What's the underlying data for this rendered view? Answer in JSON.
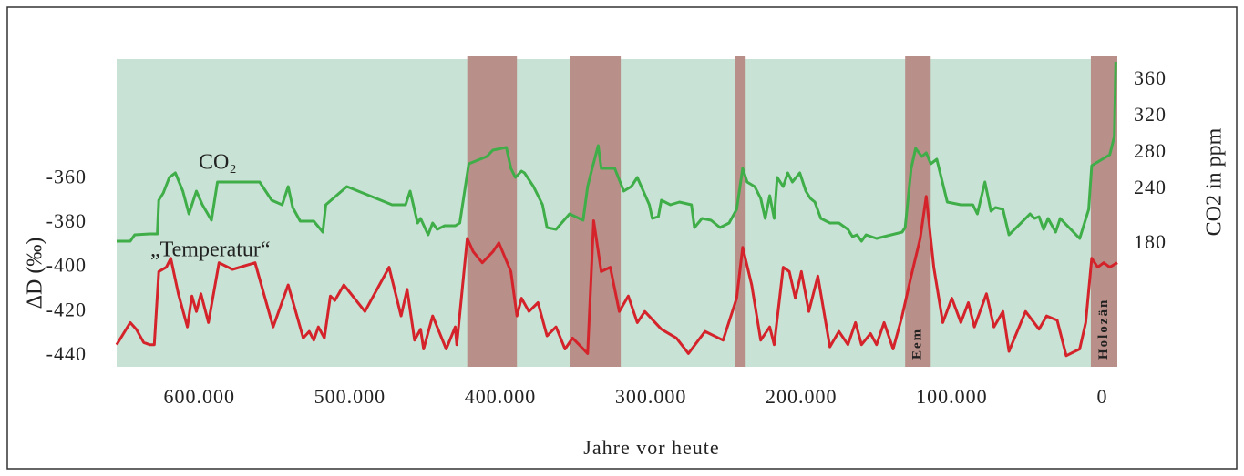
{
  "chart_data": {
    "type": "line",
    "xlabel": "Jahre vor heute",
    "ylabel": "ΔD (‰)",
    "y2label": "CO2 in ppm",
    "xlim": [
      655000,
      -10000
    ],
    "xticks": [
      {
        "value": 600000,
        "label": "600.000"
      },
      {
        "value": 500000,
        "label": "500.000"
      },
      {
        "value": 400000,
        "label": "400.000"
      },
      {
        "value": 300000,
        "label": "300.000"
      },
      {
        "value": 200000,
        "label": "200.000"
      },
      {
        "value": 100000,
        "label": "100.000"
      },
      0
    ],
    "ylim": [
      -445,
      -306
    ],
    "yticks": [
      -360,
      -380,
      -400,
      -420,
      -440
    ],
    "y2lim": [
      45,
      383
    ],
    "y2ticks": [
      360,
      320,
      280,
      240,
      180
    ],
    "grid": false,
    "background": "#c8e3d5",
    "band_color": "#b98f89",
    "bands": [
      {
        "start": 422000,
        "end": 389000
      },
      {
        "start": 354000,
        "end": 320000
      },
      {
        "start": 244000,
        "end": 237000
      },
      {
        "start": 131000,
        "end": 114000,
        "label": "Eem"
      },
      {
        "start": 7600,
        "end": -10000,
        "label": "Holozän"
      }
    ],
    "series": [
      {
        "name": "„Temperatur“",
        "color": "#d4232a",
        "axis": "y",
        "x": [
          655000,
          646000,
          642000,
          637000,
          633000,
          630000,
          627000,
          622000,
          619000,
          614000,
          608000,
          605000,
          602000,
          599000,
          594000,
          587000,
          578000,
          563000,
          551000,
          541000,
          531000,
          527000,
          524000,
          521000,
          517000,
          513000,
          510000,
          504000,
          490000,
          474000,
          466000,
          462000,
          457000,
          453000,
          451000,
          445000,
          436000,
          430000,
          429000,
          422000,
          418000,
          412000,
          405000,
          401000,
          393000,
          389000,
          386000,
          381000,
          375000,
          369000,
          363000,
          357000,
          352000,
          342000,
          338000,
          333000,
          327000,
          321000,
          315000,
          309000,
          304000,
          293000,
          283000,
          275000,
          264000,
          252000,
          243000,
          239000,
          233000,
          227000,
          221000,
          218000,
          212000,
          208000,
          204000,
          200000,
          195000,
          189000,
          181000,
          175000,
          169000,
          164000,
          160000,
          154000,
          150000,
          145000,
          139000,
          133000,
          127000,
          121000,
          117000,
          112000,
          106000,
          100000,
          94000,
          89000,
          85000,
          77000,
          72000,
          66000,
          62000,
          51000,
          42000,
          37000,
          30000,
          24000,
          15000,
          11000,
          7000,
          3000,
          -1000,
          -5000,
          -10000
        ],
        "values": [
          -435,
          -425,
          -428,
          -434,
          -435,
          -435,
          -402,
          -400,
          -396,
          -412,
          -427,
          -413,
          -420,
          -412,
          -425,
          -398,
          -401,
          -398,
          -427,
          -408,
          -432,
          -429,
          -433,
          -427,
          -432,
          -413,
          -415,
          -408,
          -420,
          -400,
          -422,
          -410,
          -433,
          -428,
          -437,
          -422,
          -437,
          -427,
          -435,
          -387,
          -393,
          -398,
          -393,
          -389,
          -402,
          -422,
          -414,
          -420,
          -416,
          -431,
          -427,
          -437,
          -432,
          -439,
          -379,
          -402,
          -400,
          -420,
          -413,
          -425,
          -420,
          -428,
          -432,
          -439,
          -429,
          -433,
          -414,
          -391,
          -408,
          -433,
          -427,
          -435,
          -400,
          -402,
          -414,
          -402,
          -420,
          -404,
          -436,
          -429,
          -435,
          -425,
          -435,
          -430,
          -435,
          -425,
          -437,
          -422,
          -404,
          -387,
          -368,
          -400,
          -425,
          -414,
          -425,
          -416,
          -427,
          -412,
          -427,
          -420,
          -438,
          -420,
          -428,
          -422,
          -424,
          -440,
          -437,
          -425,
          -396,
          -400,
          -398,
          -400,
          -398
        ]
      },
      {
        "name": "CO₂",
        "color": "#3fae49",
        "axis": "y2",
        "x": [
          655000,
          646000,
          643000,
          633000,
          628000,
          627000,
          624000,
          620000,
          616000,
          611000,
          607000,
          602000,
          598000,
          592000,
          588000,
          581000,
          560000,
          552000,
          545000,
          541000,
          538000,
          533000,
          524000,
          518000,
          516000,
          502000,
          472000,
          463000,
          460000,
          455000,
          453000,
          448000,
          445000,
          442000,
          437000,
          430000,
          427000,
          421000,
          409000,
          405000,
          396000,
          393000,
          390000,
          386000,
          384000,
          378000,
          372000,
          369000,
          363000,
          354000,
          345000,
          342000,
          339000,
          335000,
          333000,
          328000,
          324000,
          318000,
          313000,
          309000,
          301000,
          299000,
          295000,
          293000,
          287000,
          281000,
          273000,
          271000,
          266000,
          260000,
          254000,
          248000,
          243000,
          239000,
          236000,
          231000,
          227000,
          224000,
          221000,
          218000,
          216000,
          212000,
          209000,
          206000,
          201000,
          197000,
          194000,
          191000,
          187000,
          181000,
          175000,
          169000,
          166000,
          163000,
          160000,
          157000,
          150000,
          133000,
          131000,
          127000,
          124000,
          120000,
          117000,
          114000,
          110000,
          103000,
          94000,
          86000,
          83000,
          78000,
          74000,
          71000,
          66000,
          62000,
          54000,
          48000,
          45000,
          42000,
          39000,
          36000,
          31000,
          28000,
          15000,
          9000,
          7000,
          -5000,
          -8000,
          -9000
        ],
        "values": [
          183,
          183,
          190,
          191,
          191,
          228,
          236,
          253,
          258,
          238,
          213,
          238,
          223,
          206,
          248,
          248,
          248,
          228,
          223,
          243,
          220,
          205,
          205,
          193,
          223,
          243,
          223,
          223,
          238,
          203,
          208,
          190,
          203,
          196,
          200,
          200,
          203,
          268,
          276,
          283,
          286,
          263,
          253,
          260,
          258,
          243,
          223,
          198,
          196,
          213,
          206,
          243,
          263,
          288,
          263,
          263,
          263,
          238,
          243,
          253,
          223,
          208,
          210,
          228,
          223,
          226,
          223,
          198,
          208,
          206,
          198,
          203,
          218,
          263,
          248,
          243,
          230,
          208,
          233,
          208,
          253,
          243,
          258,
          248,
          258,
          238,
          230,
          226,
          208,
          203,
          203,
          196,
          188,
          190,
          183,
          190,
          186,
          193,
          198,
          263,
          285,
          276,
          280,
          268,
          273,
          226,
          223,
          223,
          213,
          248,
          216,
          220,
          218,
          190,
          203,
          213,
          208,
          210,
          196,
          208,
          193,
          208,
          186,
          218,
          266,
          278,
          298,
          380
        ]
      }
    ]
  }
}
